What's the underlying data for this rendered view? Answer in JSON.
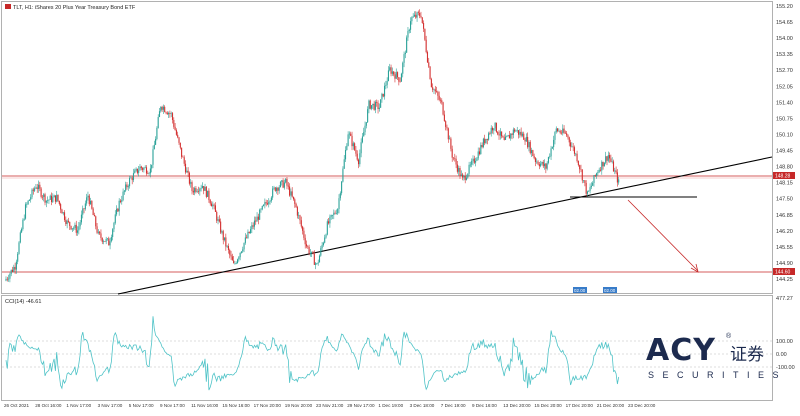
{
  "header": {
    "title": "TLT, H1: iShares 20 Plus Year Treasury Bond ETF"
  },
  "price_axis": {
    "labels": [
      "155.20",
      "154.65",
      "154.00",
      "153.35",
      "152.70",
      "152.05",
      "151.40",
      "150.75",
      "150.10",
      "149.45",
      "148.80",
      "148.15",
      "147.50",
      "146.85",
      "146.20",
      "145.55",
      "144.90",
      "144.25"
    ],
    "current_price_badge": "148.28",
    "support_price_badge": "144.60"
  },
  "cci_panel": {
    "title": "CCI(14) -46.61",
    "scale_labels": [
      "477.27",
      "100.00",
      "0.00",
      "-100.00"
    ]
  },
  "time_axis": {
    "labels": [
      "26 Oct 2021",
      "28 Oct 16:00",
      "1 Nov 17:00",
      "3 Nov 17:00",
      "5 Nov 17:00",
      "9 Nov 17:00",
      "11 Nov 16:00",
      "15 Nov 16:00",
      "17 Nov 20:00",
      "19 Nov 20:00",
      "23 Nov 21:00",
      "29 Nov 17:00",
      "1 Dec 19:00",
      "3 Dec 18:00",
      "7 Dec 19:00",
      "9 Dec 16:00",
      "13 Dec 20:00",
      "15 Dec 20:00",
      "17 Dec 20:00",
      "21 Dec 20:00",
      "23 Dec 20:00"
    ]
  },
  "time_badges": [
    "02.00",
    "02.00"
  ],
  "logo": {
    "word": "ACY",
    "chinese": "证券",
    "registered": "®",
    "subtitle": "SECURITIES"
  },
  "colors": {
    "bull": "#2aa198",
    "bear": "#d32f2f",
    "trendline": "#000000",
    "support": "#c62828",
    "cci": "#4fc3c7",
    "badge": "#c62828",
    "time_badge": "#1565c0"
  },
  "chart_data": {
    "type": "candlestick",
    "symbol": "TLT",
    "timeframe": "H1",
    "price_range": [
      143.95,
      155.4
    ],
    "cci_range": [
      -300,
      477.27
    ],
    "close_path": [
      {
        "t": 0,
        "close": 144.4
      },
      {
        "t": 1,
        "close": 145.0
      },
      {
        "t": 2,
        "close": 147.3
      },
      {
        "t": 3,
        "close": 148.2
      },
      {
        "t": 4,
        "close": 147.6
      },
      {
        "t": 5,
        "close": 147.7
      },
      {
        "t": 6,
        "close": 146.7
      },
      {
        "t": 7,
        "close": 146.4
      },
      {
        "t": 8,
        "close": 147.8
      },
      {
        "t": 9,
        "close": 146.2
      },
      {
        "t": 10,
        "close": 145.9
      },
      {
        "t": 11,
        "close": 147.5
      },
      {
        "t": 12,
        "close": 148.4
      },
      {
        "t": 13,
        "close": 148.9
      },
      {
        "t": 14,
        "close": 148.8
      },
      {
        "t": 15,
        "close": 151.4
      },
      {
        "t": 16,
        "close": 151.0
      },
      {
        "t": 17,
        "close": 149.4
      },
      {
        "t": 18,
        "close": 148.0
      },
      {
        "t": 19,
        "close": 148.2
      },
      {
        "t": 20,
        "close": 147.4
      },
      {
        "t": 21,
        "close": 146.1
      },
      {
        "t": 22,
        "close": 145.0
      },
      {
        "t": 23,
        "close": 145.9
      },
      {
        "t": 24,
        "close": 146.7
      },
      {
        "t": 25,
        "close": 147.4
      },
      {
        "t": 26,
        "close": 148.1
      },
      {
        "t": 27,
        "close": 148.3
      },
      {
        "t": 28,
        "close": 147.3
      },
      {
        "t": 29,
        "close": 145.8
      },
      {
        "t": 30,
        "close": 145.0
      },
      {
        "t": 31,
        "close": 146.6
      },
      {
        "t": 32,
        "close": 147.3
      },
      {
        "t": 33,
        "close": 150.3
      },
      {
        "t": 34,
        "close": 149.2
      },
      {
        "t": 35,
        "close": 151.4
      },
      {
        "t": 36,
        "close": 151.3
      },
      {
        "t": 37,
        "close": 152.8
      },
      {
        "t": 38,
        "close": 152.4
      },
      {
        "t": 39,
        "close": 154.8
      },
      {
        "t": 40,
        "close": 155.0
      },
      {
        "t": 41,
        "close": 152.2
      },
      {
        "t": 42,
        "close": 151.4
      },
      {
        "t": 43,
        "close": 149.4
      },
      {
        "t": 44,
        "close": 148.4
      },
      {
        "t": 45,
        "close": 149.1
      },
      {
        "t": 46,
        "close": 149.9
      },
      {
        "t": 47,
        "close": 150.6
      },
      {
        "t": 48,
        "close": 149.9
      },
      {
        "t": 49,
        "close": 150.4
      },
      {
        "t": 50,
        "close": 150.1
      },
      {
        "t": 51,
        "close": 149.2
      },
      {
        "t": 52,
        "close": 148.9
      },
      {
        "t": 53,
        "close": 150.4
      },
      {
        "t": 54,
        "close": 150.2
      },
      {
        "t": 55,
        "close": 149.3
      },
      {
        "t": 56,
        "close": 147.8
      },
      {
        "t": 57,
        "close": 148.8
      },
      {
        "t": 58,
        "close": 149.4
      },
      {
        "t": 59,
        "close": 148.3
      }
    ],
    "annotations": {
      "ascending_trendline": "black line rising from lower-left to right edge",
      "horizontal_support": 144.6,
      "horizontal_current": 148.28,
      "projection_arrow_target": 144.6
    }
  }
}
